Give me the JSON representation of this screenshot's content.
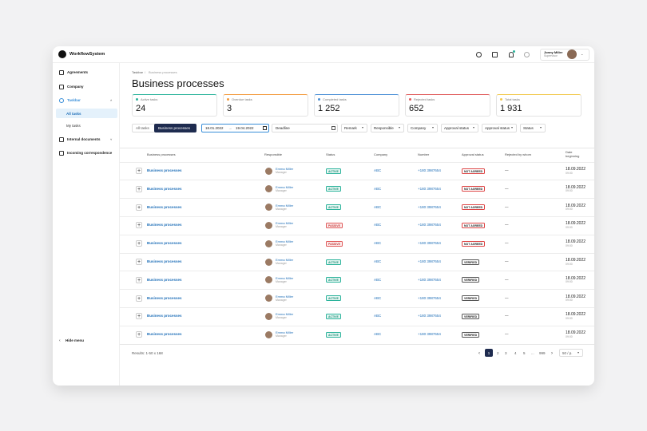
{
  "header": {
    "brand": "WorkflowSystem",
    "user_name": "Jonny Miller",
    "user_role": "Supervisor"
  },
  "sidebar": {
    "items": [
      {
        "label": "Agreements"
      },
      {
        "label": "Company"
      },
      {
        "label": "Taskbar",
        "children": [
          "All tasks",
          "My tasks"
        ]
      },
      {
        "label": "Internal documents"
      },
      {
        "label": "Incoming correspondence"
      }
    ],
    "hide": "Hide menu"
  },
  "breadcrumb": [
    "Taskbar",
    "Business processes"
  ],
  "title": "Business processes",
  "stats": [
    {
      "label": "Active tasks",
      "value": "24",
      "color": "#2bb39b"
    },
    {
      "label": "Overdue tasks",
      "value": "3",
      "color": "#f39a3c"
    },
    {
      "label": "Completed tasks",
      "value": "1 252",
      "color": "#4a8fd6"
    },
    {
      "label": "Rejected tasks",
      "value": "652",
      "color": "#e05a5a"
    },
    {
      "label": "Total tasks",
      "value": "1 931",
      "color": "#f2c94c"
    }
  ],
  "filters": {
    "tabs": [
      "All tasks",
      "Business processes"
    ],
    "date_from": "18.01.2022",
    "date_to": "19.04.2022",
    "deadline": "Deadline",
    "dropdowns": [
      "Remark",
      "Responsible",
      "Company",
      "Approval status",
      "Approval status",
      "Status"
    ]
  },
  "table": {
    "columns": [
      "Business processes",
      "Responsible",
      "Status",
      "Company",
      "Number",
      "Approval status",
      "Rejected by whom",
      "Date beginning"
    ],
    "rows": [
      [
        "Business processes",
        "Emma Miller",
        "Manager",
        "ACTIVE",
        "ABC",
        "+180 3987654",
        "NOT AGREED",
        "—",
        "18.09.2022",
        "09:00"
      ],
      [
        "Business processes",
        "Emma Miller",
        "Manager",
        "ACTIVE",
        "ABC",
        "+180 3987654",
        "NOT AGREED",
        "—",
        "18.09.2022",
        "09:00"
      ],
      [
        "Business processes",
        "Emma Miller",
        "Manager",
        "ACTIVE",
        "ABC",
        "+180 3987654",
        "NOT AGREED",
        "—",
        "18.09.2022",
        "09:00"
      ],
      [
        "Business processes",
        "Emma Miller",
        "Manager",
        "PASSIVE",
        "ABC",
        "+180 3987654",
        "NOT AGREED",
        "—",
        "18.09.2022",
        "09:00"
      ],
      [
        "Business processes",
        "Emma Miller",
        "Manager",
        "PASSIVE",
        "ABC",
        "+180 3987654",
        "NOT AGREED",
        "—",
        "18.09.2022",
        "09:00"
      ],
      [
        "Business processes",
        "Emma Miller",
        "Manager",
        "ACTIVE",
        "ABC",
        "+180 3987654",
        "VERIFIED",
        "—",
        "18.09.2022",
        "09:00"
      ],
      [
        "Business processes",
        "Emma Miller",
        "Manager",
        "ACTIVE",
        "ABC",
        "+180 3987654",
        "VERIFIED",
        "—",
        "18.09.2022",
        "09:00"
      ],
      [
        "Business processes",
        "Emma Miller",
        "Manager",
        "ACTIVE",
        "ABC",
        "+180 3987654",
        "VERIFIED",
        "—",
        "18.09.2022",
        "09:00"
      ],
      [
        "Business processes",
        "Emma Miller",
        "Manager",
        "ACTIVE",
        "ABC",
        "+180 3987654",
        "VERIFIED",
        "—",
        "18.09.2022",
        "09:00"
      ],
      [
        "Business processes",
        "Emma Miller",
        "Manager",
        "ACTIVE",
        "ABC",
        "+180 3987654",
        "VERIFIED",
        "—",
        "18.09.2022",
        "09:00"
      ]
    ]
  },
  "footer": {
    "results": "Results: 1-50 x 168",
    "pages": [
      "1",
      "2",
      "3",
      "4",
      "5",
      "...",
      "999"
    ],
    "per_page": "50 / p."
  }
}
